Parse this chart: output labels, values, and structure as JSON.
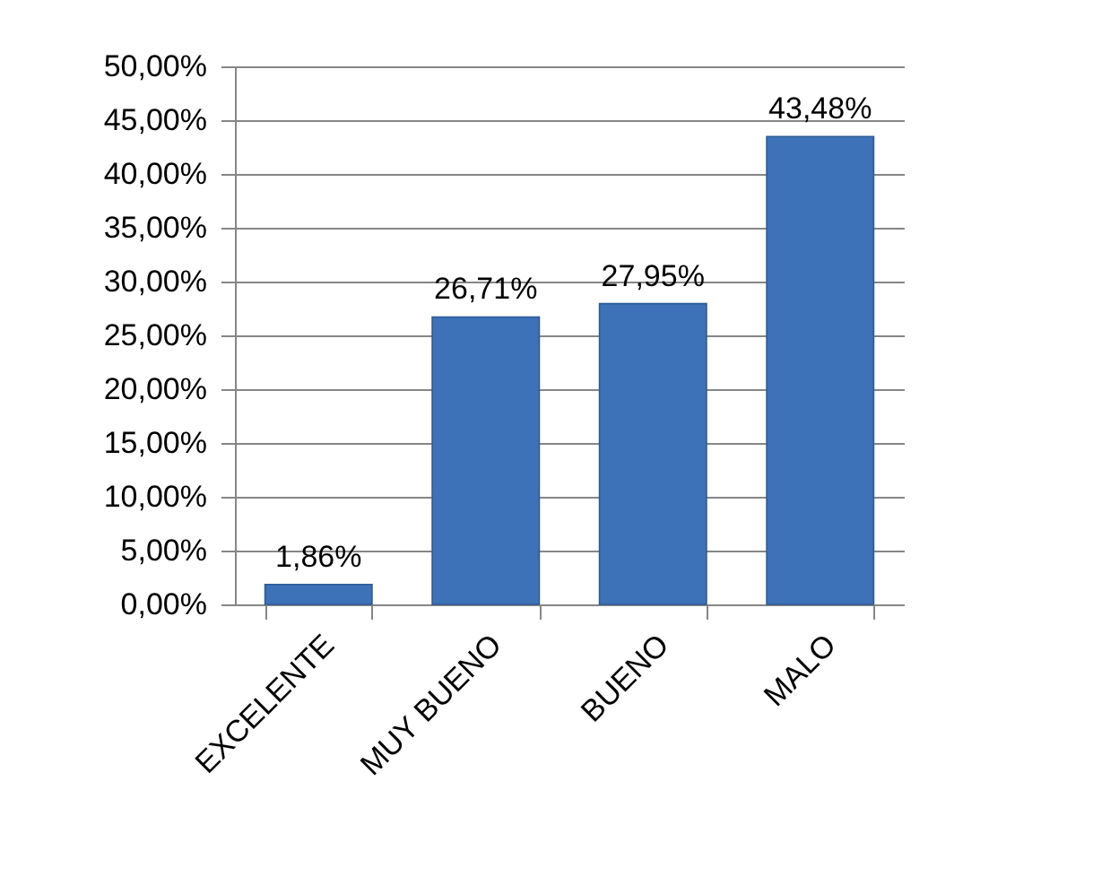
{
  "chart_data": {
    "type": "bar",
    "categories": [
      "EXCELENTE",
      "MUY BUENO",
      "BUENO",
      "MALO"
    ],
    "values": [
      1.86,
      26.71,
      27.95,
      43.48
    ],
    "value_labels": [
      "1,86%",
      "26,71%",
      "27,95%",
      "43,48%"
    ],
    "color": "#3d72b9",
    "ylim": [
      0,
      50
    ],
    "yticks": [
      {
        "value": 0,
        "label": "0,00%"
      },
      {
        "value": 5,
        "label": "5,00%"
      },
      {
        "value": 10,
        "label": "10,00%"
      },
      {
        "value": 15,
        "label": "15,00%"
      },
      {
        "value": 20,
        "label": "20,00%"
      },
      {
        "value": 25,
        "label": "25,00%"
      },
      {
        "value": 30,
        "label": "30,00%"
      },
      {
        "value": 35,
        "label": "35,00%"
      },
      {
        "value": 40,
        "label": "40,00%"
      },
      {
        "value": 45,
        "label": "45,00%"
      },
      {
        "value": 50,
        "label": "50,00%"
      }
    ],
    "grid": "y"
  }
}
